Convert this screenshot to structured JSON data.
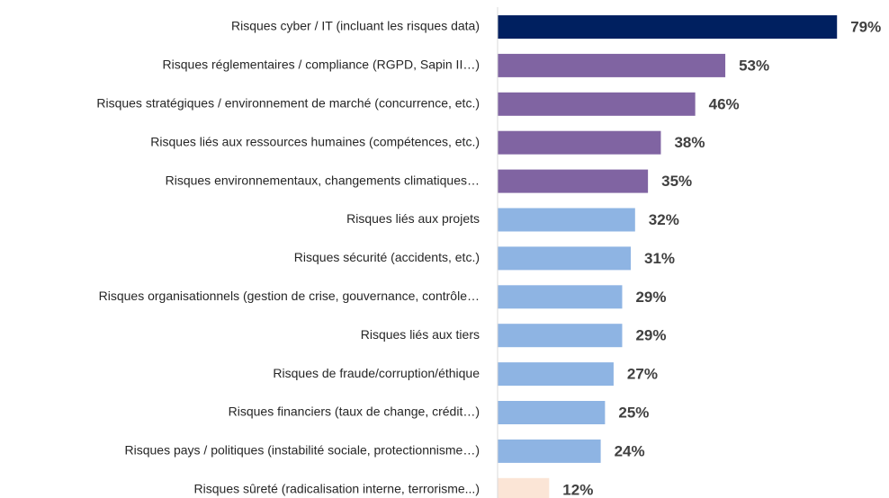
{
  "chart_data": {
    "type": "bar",
    "orientation": "horizontal",
    "categories": [
      "Risques cyber / IT (incluant les risques data)",
      "Risques réglementaires / compliance (RGPD, Sapin II…)",
      "Risques stratégiques / environnement de marché (concurrence, etc.)",
      "Risques liés aux ressources humaines (compétences, etc.)",
      "Risques environnementaux, changements climatiques…",
      "Risques liés aux projets",
      "Risques sécurité (accidents, etc.)",
      "Risques organisationnels (gestion de crise, gouvernance, contrôle…",
      "Risques liés aux tiers",
      "Risques de fraude/corruption/éthique",
      "Risques financiers (taux de change, crédit…)",
      "Risques pays / politiques (instabilité sociale, protectionnisme…)",
      "Risques sûreté (radicalisation interne, terrorisme...)"
    ],
    "values": [
      79,
      53,
      46,
      38,
      35,
      32,
      31,
      29,
      29,
      27,
      25,
      24,
      12
    ],
    "value_labels": [
      "79%",
      "53%",
      "46%",
      "38%",
      "35%",
      "32%",
      "31%",
      "29%",
      "29%",
      "27%",
      "25%",
      "24%",
      "12%"
    ],
    "colors": [
      "#002060",
      "#8064a2",
      "#8064a2",
      "#8064a2",
      "#8064a2",
      "#8eb4e3",
      "#8eb4e3",
      "#8eb4e3",
      "#8eb4e3",
      "#8eb4e3",
      "#8eb4e3",
      "#8eb4e3",
      "#fbe5d6"
    ],
    "xlim": [
      0,
      80
    ]
  }
}
